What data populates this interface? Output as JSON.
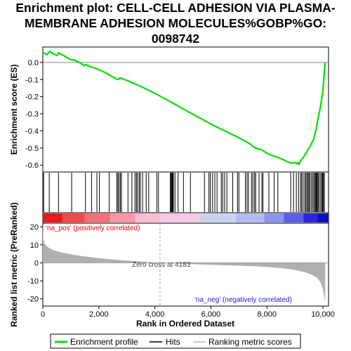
{
  "title_lines": [
    "Enrichment plot: CELL-CELL ADHESION VIA PLASMA-",
    "MEMBRANE ADHESION MOLECULES%GOBP%GO:",
    "0098742"
  ],
  "colors": {
    "es_line": "#00e000",
    "hit": "#000000",
    "metric_fill": "#b0b0b0",
    "pos_label": "#e00000",
    "neg_label": "#2020d0",
    "zero_line": "#a0a0a0"
  },
  "chart_data": [
    {
      "type": "line",
      "name": "enrichment-score",
      "ylabel": "Enrichment score (ES)",
      "xlim": [
        0,
        10200
      ],
      "ylim": [
        -0.64,
        0.09
      ],
      "y_ticks": [
        "0.0",
        "-0.1",
        "-0.2",
        "-0.3",
        "-0.4",
        "-0.5",
        "-0.6"
      ],
      "y_tick_values": [
        0.0,
        -0.1,
        -0.2,
        -0.3,
        -0.4,
        -0.5,
        -0.6
      ],
      "x": [
        0,
        150,
        240,
        380,
        500,
        560,
        700,
        900,
        1000,
        1100,
        1300,
        1500,
        1540,
        1700,
        1900,
        2100,
        2300,
        2500,
        2600,
        2700,
        2750,
        2850,
        3000,
        3200,
        3500,
        4000,
        4500,
        5000,
        5500,
        6000,
        6500,
        7000,
        7400,
        7500,
        7600,
        7700,
        7800,
        7900,
        8000,
        8200,
        8400,
        8600,
        8800,
        8900,
        9000,
        9050,
        9100,
        9150,
        9200,
        9300,
        9400,
        9500,
        9550,
        9600,
        9650,
        9700,
        9750,
        9800,
        9850,
        9900,
        9950,
        10000,
        10050,
        10080
      ],
      "y": [
        0.06,
        0.045,
        0.065,
        0.05,
        0.04,
        0.055,
        0.045,
        0.025,
        0.015,
        0.015,
        0.0,
        -0.02,
        -0.012,
        -0.025,
        -0.035,
        -0.05,
        -0.065,
        -0.085,
        -0.095,
        -0.1,
        -0.09,
        -0.095,
        -0.105,
        -0.12,
        -0.14,
        -0.18,
        -0.225,
        -0.27,
        -0.315,
        -0.36,
        -0.4,
        -0.44,
        -0.475,
        -0.49,
        -0.5,
        -0.505,
        -0.51,
        -0.52,
        -0.53,
        -0.545,
        -0.555,
        -0.57,
        -0.585,
        -0.588,
        -0.585,
        -0.592,
        -0.585,
        -0.595,
        -0.575,
        -0.555,
        -0.53,
        -0.5,
        -0.49,
        -0.47,
        -0.455,
        -0.43,
        -0.395,
        -0.35,
        -0.31,
        -0.27,
        -0.22,
        -0.165,
        -0.06,
        0.0
      ]
    },
    {
      "type": "scatter",
      "name": "hits",
      "xlim": [
        0,
        10200
      ],
      "x": [
        30,
        230,
        560,
        1030,
        1520,
        1740,
        1930,
        2020,
        2370,
        2640,
        2680,
        2720,
        2770,
        2810,
        3040,
        3180,
        3290,
        3340,
        3380,
        3440,
        3480,
        3560,
        3690,
        3780,
        4070,
        4130,
        4550,
        4580,
        4600,
        4620,
        4640,
        4660,
        4720,
        4830,
        5020,
        5270,
        5770,
        5930,
        5980,
        6060,
        6140,
        6220,
        6370,
        6420,
        6490,
        6570,
        6780,
        6950,
        7000,
        7230,
        7290,
        7340,
        7450,
        7500,
        7560,
        7600,
        7720,
        7820,
        7860,
        8070,
        8260,
        8390,
        8850,
        8950,
        9050,
        9130,
        9200,
        9240,
        9290,
        9350,
        9390,
        9430,
        9470,
        9500,
        9540,
        9590,
        9640,
        9680,
        9720,
        9750,
        9770,
        9800,
        9830,
        9870,
        9920,
        9960,
        9990,
        10020,
        10050
      ]
    },
    {
      "type": "heatmap",
      "name": "rank-color-bar",
      "xlim": [
        0,
        10200
      ],
      "segments": [
        {
          "x": [
            0,
            700
          ],
          "color": "#e51b20"
        },
        {
          "x": [
            700,
            1500
          ],
          "color": "#f0484c"
        },
        {
          "x": [
            1500,
            2400
          ],
          "color": "#f76e74"
        },
        {
          "x": [
            2400,
            3300
          ],
          "color": "#fb98a8"
        },
        {
          "x": [
            3300,
            4183
          ],
          "color": "#fcbed4"
        },
        {
          "x": [
            4183,
            5600
          ],
          "color": "#f6c9e3"
        },
        {
          "x": [
            5600,
            6900
          ],
          "color": "#ccd2f0"
        },
        {
          "x": [
            6900,
            7900
          ],
          "color": "#b3bcf0"
        },
        {
          "x": [
            7900,
            8600
          ],
          "color": "#8c96ee"
        },
        {
          "x": [
            8600,
            9300
          ],
          "color": "#5a5ee8"
        },
        {
          "x": [
            9300,
            9800
          ],
          "color": "#2a28d8"
        },
        {
          "x": [
            9800,
            10200
          ],
          "color": "#1010c0"
        }
      ]
    },
    {
      "type": "area",
      "name": "ranked-list-metric",
      "xlabel": "Rank in Ordered Dataset",
      "ylabel": "Ranked list metric (PreRanked)",
      "xlim": [
        0,
        10200
      ],
      "ylim": [
        -24,
        22
      ],
      "x_ticks": [
        "0",
        "2,000",
        "4,000",
        "6,000",
        "8,000",
        "10,000"
      ],
      "x_tick_values": [
        0,
        2000,
        4000,
        6000,
        8000,
        10000
      ],
      "y_ticks": [
        "20",
        "10",
        "0",
        "-10",
        "-20"
      ],
      "y_tick_values": [
        20,
        10,
        0,
        -10,
        -20
      ],
      "x": [
        0,
        20,
        60,
        120,
        250,
        400,
        600,
        900,
        1200,
        1600,
        2000,
        2500,
        3000,
        3500,
        4183,
        5000,
        6000,
        7000,
        7500,
        8000,
        8500,
        8800,
        9100,
        9300,
        9500,
        9650,
        9800,
        9900,
        9960,
        10010,
        10050,
        10080
      ],
      "y": [
        21,
        13,
        11,
        9.5,
        8,
        7,
        6,
        5,
        4.2,
        3.4,
        2.6,
        1.9,
        1.3,
        0.7,
        0,
        -0.5,
        -1.1,
        -1.6,
        -1.9,
        -2.3,
        -2.9,
        -3.4,
        -4.2,
        -5.0,
        -6.0,
        -7.0,
        -8.5,
        -10.5,
        -12.5,
        -15.5,
        -19,
        -22
      ],
      "zero_cross_text": "Zero cross at 4183",
      "pos_text": "'na_pos' (positively correlated)",
      "neg_text": "'na_neg' (negatively correlated)"
    }
  ],
  "legend": {
    "items": [
      {
        "label": "Enrichment profile"
      },
      {
        "label": "Hits"
      },
      {
        "label": "Ranking metric scores"
      }
    ]
  }
}
